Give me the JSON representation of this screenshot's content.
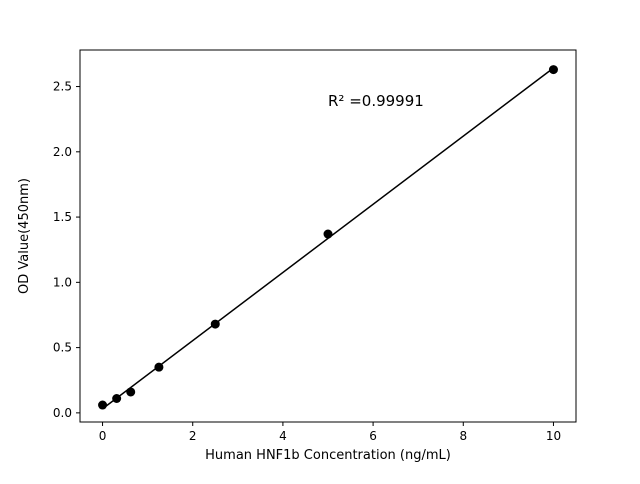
{
  "chart_data": {
    "type": "scatter",
    "x": [
      0,
      0.313,
      0.625,
      1.25,
      2.5,
      5,
      10
    ],
    "y": [
      0.06,
      0.11,
      0.16,
      0.35,
      0.68,
      1.37,
      2.63
    ],
    "title": "",
    "xlabel": "Human HNF1b Concentration (ng/mL)",
    "ylabel": "OD Value(450nm)",
    "annotation": "R² =0.99991",
    "xlim": [
      -0.5,
      10.5
    ],
    "ylim": [
      -0.07,
      2.78
    ],
    "xticks": {
      "values": [
        0,
        2,
        4,
        6,
        8,
        10
      ],
      "labels": [
        "0",
        "2",
        "4",
        "6",
        "8",
        "10"
      ]
    },
    "yticks": {
      "values": [
        0,
        0.5,
        1,
        1.5,
        2,
        2.5
      ],
      "labels": [
        "0.0",
        "0.5",
        "1.0",
        "1.5",
        "2.0",
        "2.5"
      ]
    },
    "fit": "linear",
    "grid": false,
    "legend": "none",
    "colors": {
      "marker": "#000000",
      "line": "#000000",
      "axes": "#000000",
      "background": "#ffffff"
    }
  }
}
